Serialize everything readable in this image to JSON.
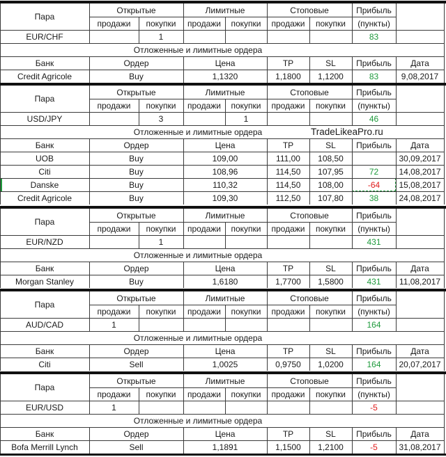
{
  "headers": {
    "pair": "Пара",
    "open": "Открытые",
    "limit": "Лимитные",
    "stop": "Стоповые",
    "profit": "Прибыль",
    "sells": "продажи",
    "buys": "покупки",
    "points": "(пункты)",
    "pending": "Отложенные и лимитные ордера",
    "bank": "Банк",
    "order": "Ордер",
    "price": "Цена",
    "tp": "TP",
    "sl": "SL",
    "date": "Дата"
  },
  "watermark": "TradeLikeaPro.ru",
  "blocks": [
    {
      "pair": "EUR/CHF",
      "open_sell": "",
      "open_buy": "1",
      "limit_sell": "",
      "limit_buy": "",
      "stop_sell": "",
      "stop_buy": "",
      "profit": "83",
      "profit_sign": "pos",
      "orders": [
        {
          "bank": "Credit Agricole",
          "order": "Buy",
          "price": "1,1320",
          "tp": "1,1800",
          "sl": "1,1200",
          "profit": "83",
          "sign": "pos",
          "date": "9,08,2017"
        }
      ]
    },
    {
      "pair": "USD/JPY",
      "open_sell": "",
      "open_buy": "3",
      "limit_sell": "",
      "limit_buy": "1",
      "stop_sell": "",
      "stop_buy": "",
      "profit": "46",
      "profit_sign": "pos",
      "orders": [
        {
          "bank": "UOB",
          "order": "Buy",
          "price": "109,00",
          "tp": "111,00",
          "sl": "108,50",
          "profit": "",
          "sign": "pos",
          "date": "30,09,2017"
        },
        {
          "bank": "Citi",
          "order": "Buy",
          "price": "108,96",
          "tp": "114,50",
          "sl": "107,95",
          "profit": "72",
          "sign": "pos",
          "date": "14,08,2017"
        },
        {
          "bank": "Danske",
          "order": "Buy",
          "price": "110,32",
          "tp": "114,50",
          "sl": "108,00",
          "profit": "-64",
          "sign": "neg",
          "date": "15,08,2017"
        },
        {
          "bank": "Credit Agricole",
          "order": "Buy",
          "price": "109,30",
          "tp": "112,50",
          "sl": "107,80",
          "profit": "38",
          "sign": "pos",
          "date": "24,08,2017"
        }
      ]
    },
    {
      "pair": "EUR/NZD",
      "open_sell": "",
      "open_buy": "1",
      "limit_sell": "",
      "limit_buy": "",
      "stop_sell": "",
      "stop_buy": "",
      "profit": "431",
      "profit_sign": "pos",
      "orders": [
        {
          "bank": "Morgan Stanley",
          "order": "Buy",
          "price": "1,6180",
          "tp": "1,7700",
          "sl": "1,5800",
          "profit": "431",
          "sign": "pos",
          "date": "11,08,2017"
        }
      ]
    },
    {
      "pair": "AUD/CAD",
      "open_sell": "1",
      "open_buy": "",
      "limit_sell": "",
      "limit_buy": "",
      "stop_sell": "",
      "stop_buy": "",
      "profit": "164",
      "profit_sign": "pos",
      "orders": [
        {
          "bank": "Citi",
          "order": "Sell",
          "price": "1,0025",
          "tp": "0,9750",
          "sl": "1,0200",
          "profit": "164",
          "sign": "pos",
          "date": "20,07,2017"
        }
      ]
    },
    {
      "pair": "EUR/USD",
      "open_sell": "1",
      "open_buy": "",
      "limit_sell": "",
      "limit_buy": "",
      "stop_sell": "",
      "stop_buy": "",
      "profit": "-5",
      "profit_sign": "neg",
      "orders": [
        {
          "bank": "Bofa Merrill Lynch",
          "order": "Sell",
          "price": "1,1891",
          "tp": "1,1500",
          "sl": "1,2100",
          "profit": "-5",
          "sign": "neg",
          "date": "31,08,2017"
        }
      ]
    }
  ]
}
